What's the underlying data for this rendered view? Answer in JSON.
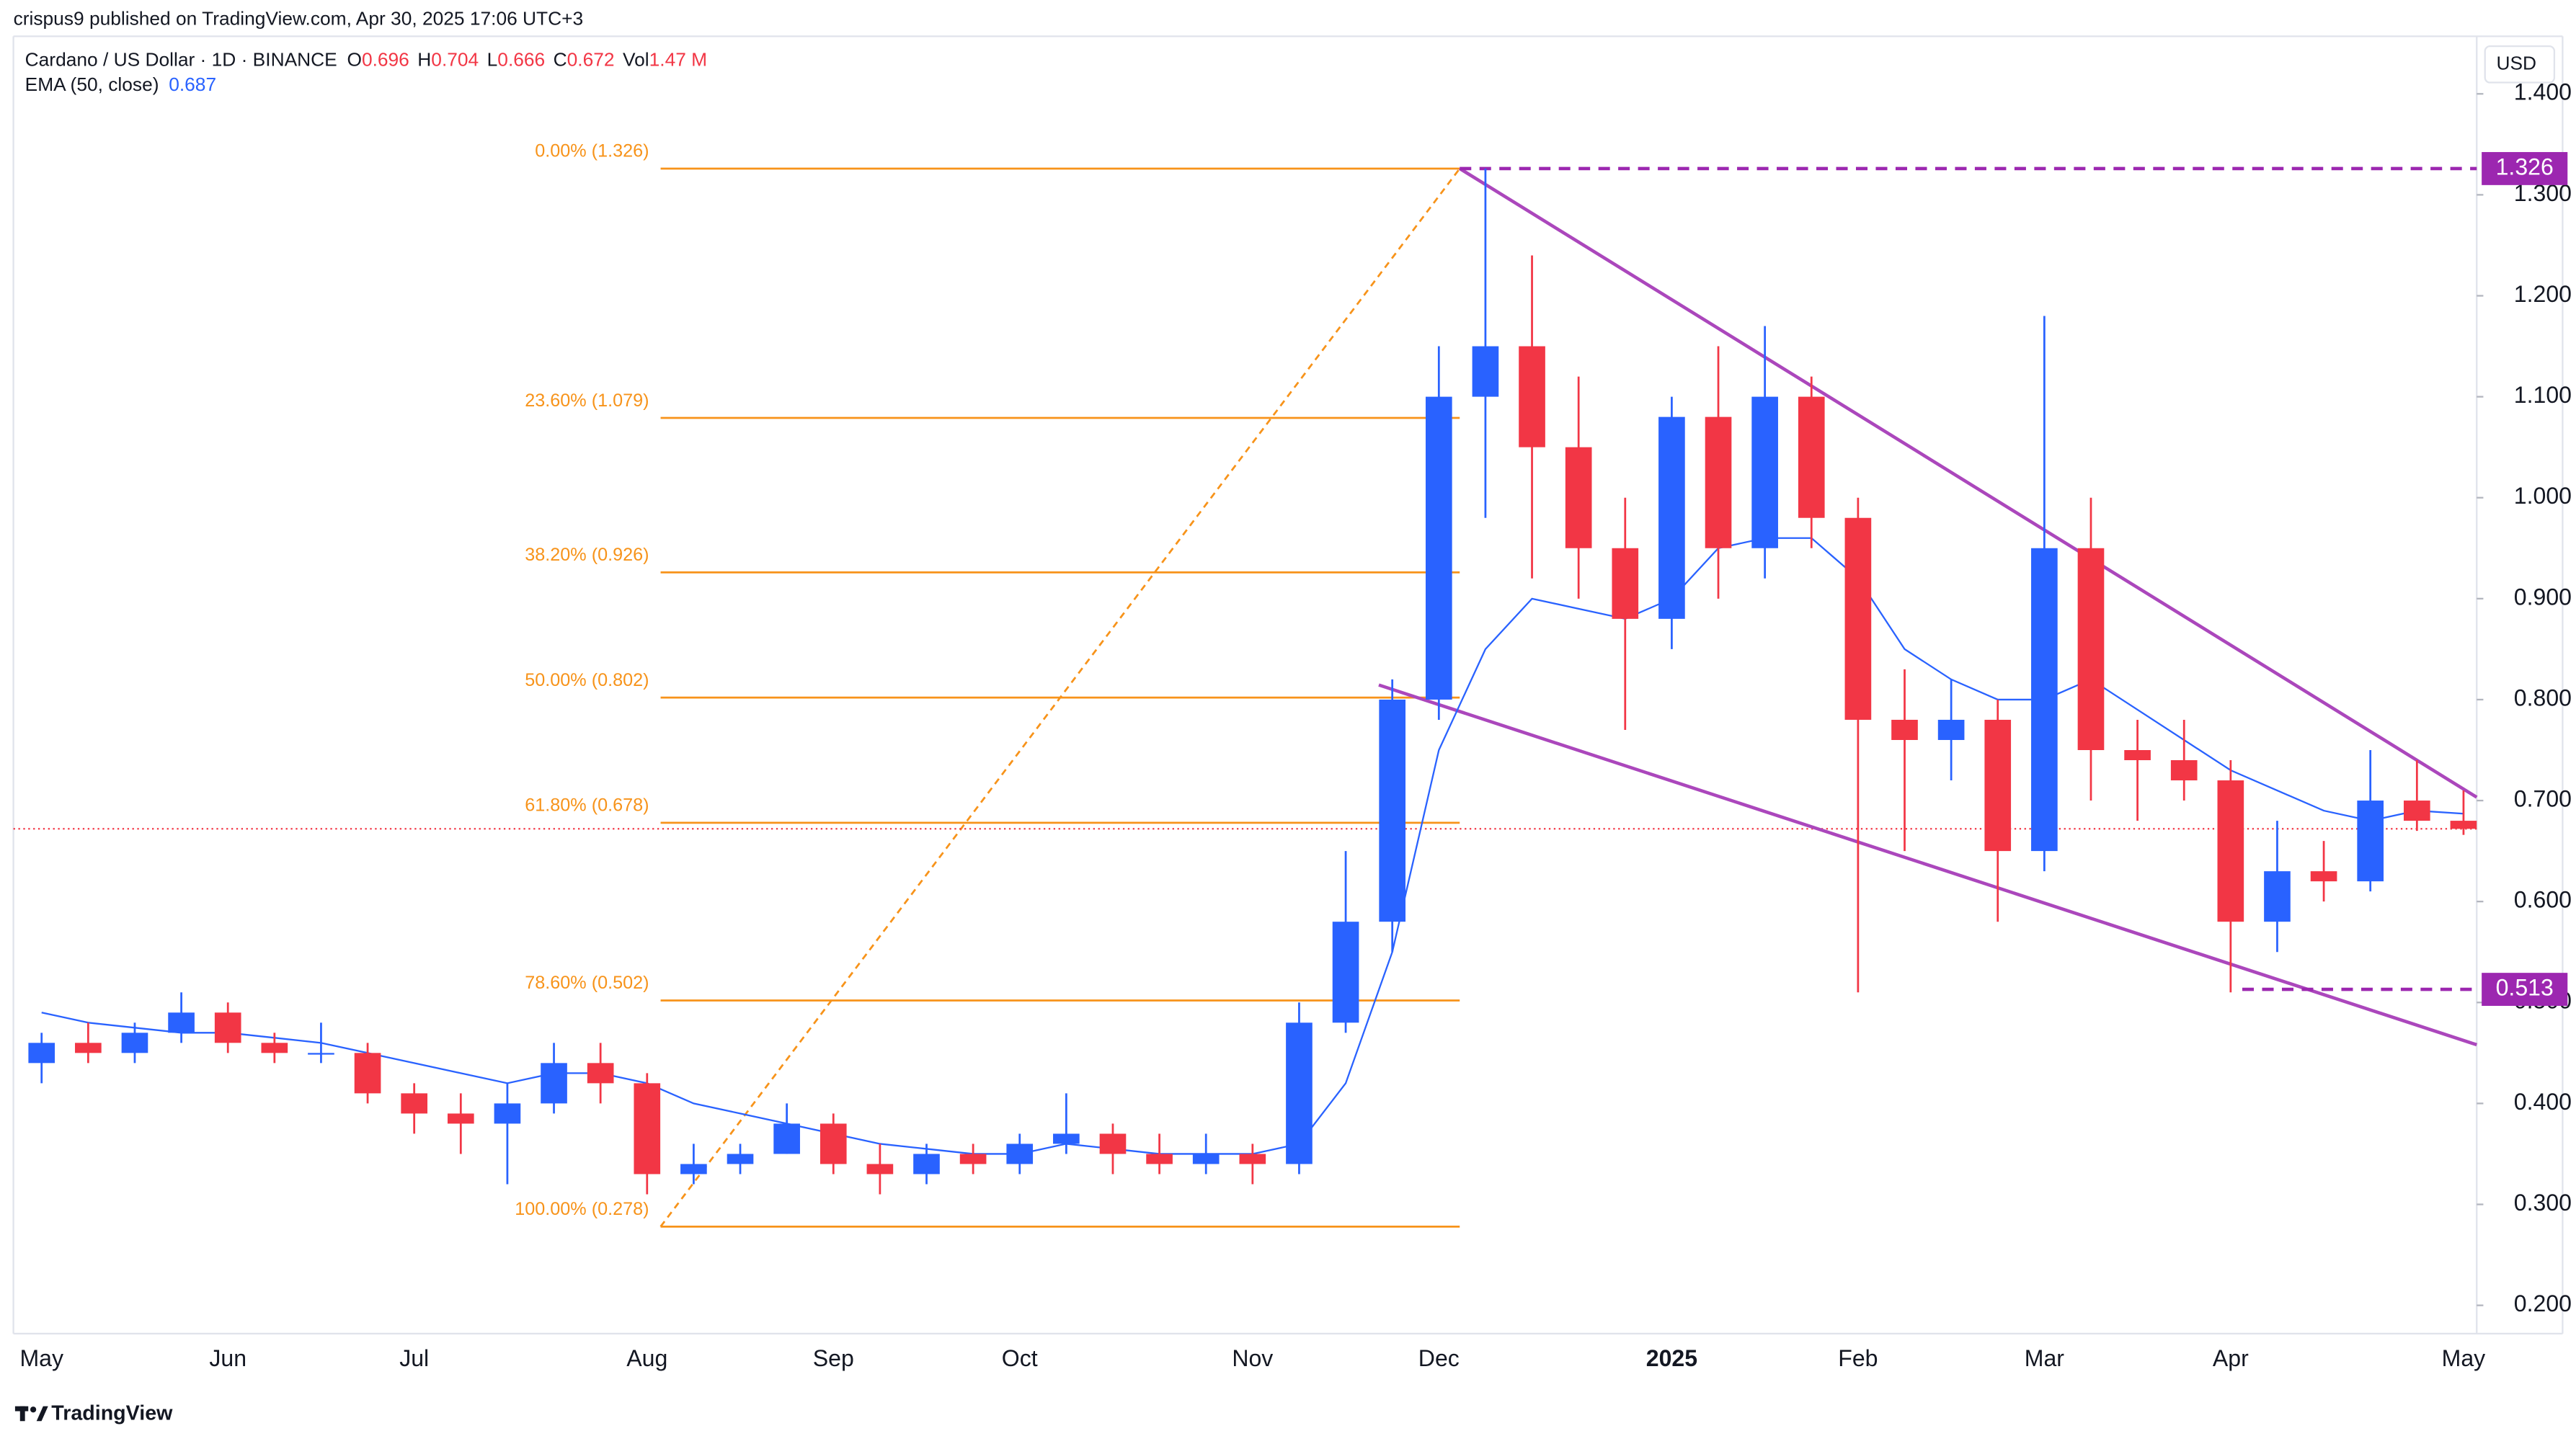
{
  "header": {
    "publisher": "crispus9 published on TradingView.com, Apr 30, 2025 17:06 UTC+3",
    "symbol": "Cardano / US Dollar · 1D · BINANCE",
    "ohlc": [
      {
        "key": "O",
        "value": 0.696
      },
      {
        "key": "H",
        "value": 0.704
      },
      {
        "key": "L",
        "value": 0.666
      },
      {
        "key": "C",
        "value": 0.672
      },
      {
        "key": "Vol",
        "value": "1.47 M"
      }
    ],
    "ema_value": 0.687,
    "currency": "USD"
  },
  "chart_data": {
    "type": "candlestick",
    "categories": [
      "May",
      null,
      null,
      null,
      "Jun",
      null,
      null,
      null,
      "Jul",
      null,
      null,
      null,
      null,
      "Aug",
      null,
      null,
      null,
      "Sep",
      null,
      null,
      null,
      "Oct",
      null,
      null,
      null,
      null,
      "Nov",
      null,
      null,
      null,
      "Dec",
      null,
      null,
      null,
      null,
      "2025",
      null,
      null,
      null,
      "Feb",
      null,
      null,
      null,
      "Mar",
      null,
      null,
      null,
      "Apr",
      null,
      null,
      null,
      null,
      "May"
    ],
    "series": [
      {
        "up_color": "#2962ff",
        "down_color": "#f23645",
        "open": [
          0.44,
          0.46,
          0.45,
          0.47,
          0.49,
          0.46,
          0.45,
          0.45,
          0.41,
          0.39,
          0.38,
          0.4,
          0.44,
          0.42,
          0.33,
          0.34,
          0.35,
          0.38,
          0.34,
          0.33,
          0.35,
          0.34,
          0.36,
          0.37,
          0.35,
          0.34,
          0.35,
          0.34,
          0.48,
          0.58,
          0.8,
          1.1,
          1.15,
          1.05,
          0.95,
          0.88,
          1.08,
          0.95,
          1.1,
          0.98,
          0.78,
          0.76,
          0.78,
          0.65,
          0.95,
          0.75,
          0.74,
          0.72,
          0.58,
          0.63,
          0.62,
          0.7,
          0.68
        ],
        "high": [
          0.47,
          0.48,
          0.48,
          0.51,
          0.5,
          0.47,
          0.48,
          0.46,
          0.42,
          0.41,
          0.42,
          0.46,
          0.46,
          0.43,
          0.36,
          0.36,
          0.4,
          0.39,
          0.36,
          0.36,
          0.36,
          0.37,
          0.41,
          0.38,
          0.37,
          0.37,
          0.36,
          0.5,
          0.65,
          0.82,
          1.15,
          1.326,
          1.24,
          1.12,
          1.0,
          1.1,
          1.15,
          1.17,
          1.12,
          1.0,
          0.83,
          0.82,
          0.8,
          1.18,
          1.0,
          0.78,
          0.78,
          0.74,
          0.68,
          0.66,
          0.75,
          0.74,
          0.71
        ],
        "low": [
          0.42,
          0.44,
          0.44,
          0.46,
          0.45,
          0.44,
          0.44,
          0.4,
          0.37,
          0.35,
          0.32,
          0.39,
          0.4,
          0.31,
          0.32,
          0.33,
          0.35,
          0.33,
          0.31,
          0.32,
          0.33,
          0.33,
          0.35,
          0.33,
          0.33,
          0.33,
          0.32,
          0.33,
          0.47,
          0.55,
          0.78,
          0.98,
          0.92,
          0.9,
          0.77,
          0.85,
          0.9,
          0.92,
          0.95,
          0.51,
          0.65,
          0.72,
          0.58,
          0.63,
          0.7,
          0.68,
          0.7,
          0.51,
          0.55,
          0.6,
          0.61,
          0.67,
          0.666
        ],
        "close": [
          0.46,
          0.45,
          0.47,
          0.49,
          0.46,
          0.45,
          0.45,
          0.41,
          0.39,
          0.38,
          0.4,
          0.44,
          0.42,
          0.33,
          0.34,
          0.35,
          0.38,
          0.34,
          0.33,
          0.35,
          0.34,
          0.36,
          0.37,
          0.35,
          0.34,
          0.35,
          0.34,
          0.48,
          0.58,
          0.8,
          1.1,
          1.15,
          1.05,
          0.95,
          0.88,
          1.08,
          0.95,
          1.1,
          0.98,
          0.78,
          0.76,
          0.78,
          0.65,
          0.95,
          0.75,
          0.74,
          0.72,
          0.58,
          0.63,
          0.62,
          0.7,
          0.68,
          0.672
        ]
      },
      {
        "name": "EMA (50, close)",
        "type": "line",
        "color": "#2962ff",
        "values": [
          0.49,
          0.48,
          0.475,
          0.47,
          0.47,
          0.465,
          0.46,
          0.45,
          0.44,
          0.43,
          0.42,
          0.43,
          0.43,
          0.42,
          0.4,
          0.39,
          0.38,
          0.37,
          0.36,
          0.355,
          0.35,
          0.35,
          0.36,
          0.355,
          0.35,
          0.35,
          0.35,
          0.36,
          0.42,
          0.55,
          0.75,
          0.85,
          0.9,
          0.89,
          0.88,
          0.9,
          0.95,
          0.96,
          0.96,
          0.92,
          0.85,
          0.82,
          0.8,
          0.8,
          0.82,
          0.79,
          0.76,
          0.73,
          0.71,
          0.69,
          0.68,
          0.69,
          0.687
        ]
      }
    ],
    "ylim": [
      0.172,
      1.457
    ],
    "yticks": [
      {
        "value": 0.2,
        "label": "0.200"
      },
      {
        "value": 0.3,
        "label": "0.300"
      },
      {
        "value": 0.4,
        "label": "0.400"
      },
      {
        "value": 0.5,
        "label": "0.500"
      },
      {
        "value": 0.6,
        "label": "0.600"
      },
      {
        "value": 0.7,
        "label": "0.700"
      },
      {
        "value": 0.8,
        "label": "0.800"
      },
      {
        "value": 0.9,
        "label": "0.900"
      },
      {
        "value": 1.0,
        "label": "1.000"
      },
      {
        "value": 1.1,
        "label": "1.100"
      },
      {
        "value": 1.2,
        "label": "1.200"
      },
      {
        "value": 1.3,
        "label": "1.300"
      },
      {
        "value": 1.4,
        "label": "1.400"
      }
    ],
    "fib_levels": [
      {
        "label": "0.00% (1.326)",
        "value": 1.326
      },
      {
        "label": "23.60% (1.079)",
        "value": 1.079
      },
      {
        "label": "38.20% (0.926)",
        "value": 0.926
      },
      {
        "label": "50.00% (0.802)",
        "value": 0.802
      },
      {
        "label": "61.80% (0.678)",
        "value": 0.678
      },
      {
        "label": "78.60% (0.502)",
        "value": 0.502
      },
      {
        "label": "100.00% (0.278)",
        "value": 0.278
      }
    ],
    "fib_color": "#f7931a",
    "markers": [
      {
        "value": 1.326,
        "color": "#9c27b0"
      },
      {
        "value": 0.513,
        "color": "#9c27b0"
      }
    ],
    "last_price": 0.672,
    "last_price_color": "#f23645"
  },
  "footer": {
    "brand": "TradingView"
  }
}
